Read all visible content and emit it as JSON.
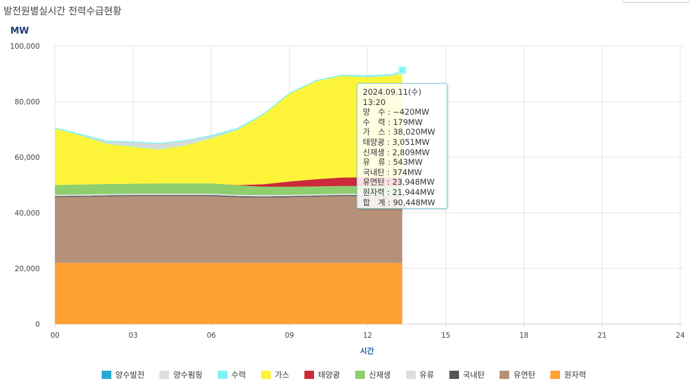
{
  "title": "발전원별실시간 전력수급현황",
  "chart_data": {
    "type": "area",
    "stacked": true,
    "ylabel": "MW",
    "xlabel": "시간",
    "ylim": [
      0,
      100000
    ],
    "xlim": [
      0,
      24
    ],
    "yticks": [
      0,
      20000,
      40000,
      60000,
      80000,
      100000
    ],
    "ytick_labels": [
      "0",
      "20,000",
      "40,000",
      "60,000",
      "80,000",
      "100,000"
    ],
    "xticks": [
      0,
      3,
      6,
      9,
      12,
      15,
      18,
      21,
      24
    ],
    "xtick_labels": [
      "00",
      "03",
      "06",
      "09",
      "12",
      "15",
      "18",
      "21",
      "24"
    ],
    "x": [
      0,
      1,
      2,
      3,
      4,
      5,
      6,
      7,
      8,
      9,
      10,
      11,
      12,
      13,
      13.33
    ],
    "series": [
      {
        "name": "원자력",
        "color": "#ffa033",
        "values": [
          22000,
          22000,
          22000,
          22000,
          22000,
          22000,
          22000,
          22000,
          22000,
          22000,
          22000,
          22000,
          22000,
          22000,
          21944
        ]
      },
      {
        "name": "유연탄",
        "color": "#b5917a",
        "values": [
          23600,
          23700,
          23900,
          24000,
          24000,
          24000,
          24000,
          23600,
          23500,
          23600,
          23800,
          24000,
          24000,
          23950,
          23948
        ]
      },
      {
        "name": "국내탄",
        "color": "#555555",
        "values": [
          374,
          374,
          374,
          374,
          374,
          374,
          374,
          374,
          374,
          374,
          374,
          374,
          374,
          374,
          374
        ]
      },
      {
        "name": "유류",
        "color": "#dddddd",
        "values": [
          500,
          500,
          500,
          500,
          500,
          500,
          500,
          500,
          500,
          500,
          500,
          500,
          500,
          500,
          543
        ]
      },
      {
        "name": "신재생",
        "color": "#8fce6e",
        "values": [
          3500,
          3600,
          3600,
          3600,
          3700,
          3700,
          3700,
          3400,
          3000,
          2900,
          2800,
          2800,
          2800,
          2800,
          2809
        ]
      },
      {
        "name": "태양광",
        "color": "#cc2a3a",
        "values": [
          0,
          0,
          0,
          0,
          0,
          0,
          0,
          100,
          900,
          1900,
          2600,
          3000,
          3100,
          3060,
          3051
        ]
      },
      {
        "name": "가스",
        "color": "#fdf43a",
        "values": [
          20300,
          17600,
          14400,
          13300,
          12200,
          13700,
          16200,
          19800,
          25000,
          31500,
          35200,
          36600,
          36000,
          36600,
          38020
        ]
      },
      {
        "name": "수력",
        "color": "#7df3f7",
        "values": [
          200,
          200,
          200,
          200,
          200,
          200,
          200,
          200,
          200,
          200,
          200,
          200,
          200,
          200,
          179
        ]
      },
      {
        "name": "양수",
        "color": "#d9d9d9",
        "values": [
          0,
          -200,
          -800,
          -1500,
          -2000,
          -1500,
          -800,
          -300,
          0,
          0,
          0,
          0,
          -300,
          -300,
          -420
        ]
      }
    ],
    "legend": [
      {
        "name": "양수발전",
        "color": "#2aa7d6"
      },
      {
        "name": "양수펌핑",
        "color": "#dddddd"
      },
      {
        "name": "수력",
        "color": "#7df3f7"
      },
      {
        "name": "가스",
        "color": "#fdf43a"
      },
      {
        "name": "태양광",
        "color": "#cc2a3a"
      },
      {
        "name": "신재생",
        "color": "#8fce6e"
      },
      {
        "name": "유류",
        "color": "#dddddd"
      },
      {
        "name": "국내탄",
        "color": "#555555"
      },
      {
        "name": "유연탄",
        "color": "#b5917a"
      },
      {
        "name": "원자력",
        "color": "#ffa033"
      }
    ],
    "legend_position": "bottom",
    "tooltip": {
      "header": "2024.09.11(수) 13:20",
      "rows": [
        "양　수 : −420MW",
        "수　력 : 179MW",
        "가　스 : 38,020MW",
        "태양광 : 3,051MW",
        "신재생 : 2,809MW",
        "유　류 : 543MW",
        "국내탄 : 374MW",
        "유연탄 : 23,948MW",
        "원자력 : 21,944MW",
        "합　계 : 90,448MW"
      ]
    }
  }
}
